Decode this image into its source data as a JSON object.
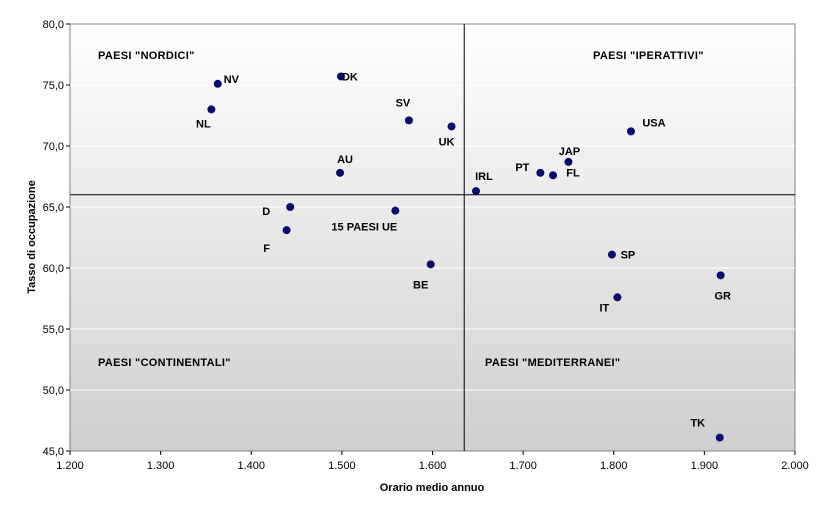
{
  "chart_data": {
    "type": "scatter",
    "xlabel": "Orario medio annuo",
    "ylabel": "Tasso di occupazione",
    "xlim": [
      1200,
      2000
    ],
    "ylim": [
      45,
      80
    ],
    "x_ticks": [
      "1.200",
      "1.300",
      "1.400",
      "1.500",
      "1.600",
      "1.700",
      "1.800",
      "1.900",
      "2.000"
    ],
    "y_ticks": [
      "45,0",
      "50,0",
      "55,0",
      "60,0",
      "65,0",
      "70,0",
      "75,0",
      "80,0"
    ],
    "quadrant_divider": {
      "x": 1635,
      "y": 66.0
    },
    "quadrant_labels": {
      "top_left": "PAESI \"NORDICI\"",
      "top_right": "PAESI \"IPERATTIVI\"",
      "bottom_left": "PAESI \"CONTINENTALI\"",
      "bottom_right": "PAESI \"MEDITERRANEI\""
    },
    "marker_color": "#0a0a6e",
    "points": [
      {
        "label": "NV",
        "x": 1363,
        "y": 75.1
      },
      {
        "label": "DK",
        "x": 1499,
        "y": 75.7
      },
      {
        "label": "NL",
        "x": 1356,
        "y": 73.0
      },
      {
        "label": "SV",
        "x": 1574,
        "y": 72.1
      },
      {
        "label": "UK",
        "x": 1621,
        "y": 71.6
      },
      {
        "label": "AU",
        "x": 1498,
        "y": 67.8
      },
      {
        "label": "IRL",
        "x": 1648,
        "y": 66.3
      },
      {
        "label": "PT",
        "x": 1719,
        "y": 67.8
      },
      {
        "label": "FL",
        "x": 1733,
        "y": 67.6
      },
      {
        "label": "JAP",
        "x": 1750,
        "y": 68.7
      },
      {
        "label": "USA",
        "x": 1819,
        "y": 71.2
      },
      {
        "label": "D",
        "x": 1443,
        "y": 65.0
      },
      {
        "label": "15 PAESI UE",
        "x": 1559,
        "y": 64.7
      },
      {
        "label": "F",
        "x": 1439,
        "y": 63.1
      },
      {
        "label": "BE",
        "x": 1598,
        "y": 60.3
      },
      {
        "label": "SP",
        "x": 1798,
        "y": 61.1
      },
      {
        "label": "GR",
        "x": 1918,
        "y": 59.4
      },
      {
        "label": "IT",
        "x": 1804,
        "y": 57.6
      },
      {
        "label": "TK",
        "x": 1917,
        "y": 46.1
      }
    ]
  }
}
